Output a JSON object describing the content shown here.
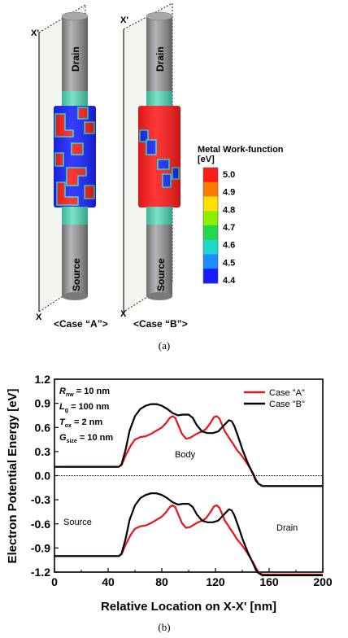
{
  "panel_a": {
    "case_a": {
      "axis_top": "X'",
      "axis_bottom": "X",
      "drain_label": "Drain",
      "source_label": "Source",
      "caption": "<Case “A”>"
    },
    "case_b": {
      "axis_top": "X'",
      "axis_bottom": "X",
      "drain_label": "Drain",
      "source_label": "Source",
      "caption": "<Case “B”>"
    },
    "colorbar": {
      "title": "Metal Work-function",
      "unit": "[eV]",
      "ticks": [
        "5.0",
        "4.9",
        "4.8",
        "4.7",
        "4.6",
        "4.5",
        "4.4"
      ],
      "colors": [
        "#ff1a1a",
        "#ff7a00",
        "#ffe000",
        "#8bf000",
        "#22d84a",
        "#1ed8d0",
        "#1e8cff",
        "#1a1aff"
      ]
    },
    "label": "(a)"
  },
  "panel_b": {
    "label": "(b)",
    "params": {
      "p1": {
        "sym": "R",
        "sub": "nw",
        "val": " = 10 nm"
      },
      "p2": {
        "sym": "L",
        "sub": "g",
        "val": " = 100 nm"
      },
      "p3": {
        "sym": "T",
        "sub": "ox",
        "val": " = 2 nm"
      },
      "p4": {
        "sym": "G",
        "sub": "size",
        "val": " = 10 nm"
      }
    },
    "region_labels": {
      "body": "Body",
      "source": "Source",
      "drain": "Drain"
    }
  },
  "chart_data": {
    "type": "line",
    "xlabel": "Relative Location on X-X' [nm]",
    "ylabel": "Electron Potential Energy [eV]",
    "xlim": [
      0,
      200
    ],
    "ylim": [
      -1.2,
      1.2
    ],
    "xticks": [
      "0",
      "40",
      "80",
      "120",
      "160",
      "200"
    ],
    "yticks": [
      "1.2",
      "0.9",
      "0.6",
      "0.3",
      "0.0",
      "-0.3",
      "-0.6",
      "-0.9",
      "-1.2"
    ],
    "legend_placement": "top-right",
    "series": [
      {
        "name": "Case \"A\"",
        "color": "#e8141c",
        "band": "conduction",
        "x": [
          0,
          48,
          50,
          53,
          57,
          60,
          64,
          68,
          72,
          76,
          80,
          83,
          86,
          88,
          90,
          92,
          95,
          98,
          101,
          104,
          107,
          110,
          113,
          116,
          119,
          121,
          123,
          125,
          127,
          129,
          131,
          133,
          136,
          140,
          144,
          148,
          150,
          152,
          155,
          200
        ],
        "y": [
          0.11,
          0.11,
          0.13,
          0.25,
          0.38,
          0.45,
          0.48,
          0.49,
          0.52,
          0.56,
          0.6,
          0.65,
          0.72,
          0.74,
          0.72,
          0.64,
          0.52,
          0.46,
          0.47,
          0.5,
          0.53,
          0.55,
          0.58,
          0.65,
          0.73,
          0.74,
          0.71,
          0.63,
          0.55,
          0.5,
          0.45,
          0.4,
          0.32,
          0.24,
          0.14,
          0.03,
          -0.04,
          -0.1,
          -0.13,
          -0.13
        ]
      },
      {
        "name": "Case \"A\"",
        "color": "#e8141c",
        "band": "valence",
        "x": [
          0,
          48,
          50,
          53,
          57,
          60,
          64,
          68,
          72,
          76,
          80,
          83,
          86,
          88,
          90,
          92,
          95,
          98,
          101,
          104,
          107,
          110,
          113,
          116,
          119,
          121,
          123,
          125,
          127,
          129,
          131,
          133,
          136,
          140,
          144,
          148,
          150,
          152,
          155,
          200
        ],
        "y": [
          -1.0,
          -1.0,
          -0.98,
          -0.86,
          -0.73,
          -0.66,
          -0.63,
          -0.62,
          -0.59,
          -0.55,
          -0.51,
          -0.46,
          -0.39,
          -0.37,
          -0.39,
          -0.47,
          -0.59,
          -0.65,
          -0.64,
          -0.61,
          -0.58,
          -0.56,
          -0.53,
          -0.46,
          -0.38,
          -0.37,
          -0.4,
          -0.48,
          -0.56,
          -0.61,
          -0.66,
          -0.71,
          -0.79,
          -0.87,
          -0.97,
          -1.08,
          -1.14,
          -1.2,
          -1.23,
          -1.23
        ]
      },
      {
        "name": "Case \"B\"",
        "color": "#000000",
        "band": "conduction",
        "x": [
          0,
          48,
          50,
          53,
          56,
          60,
          64,
          68,
          72,
          76,
          80,
          84,
          88,
          92,
          96,
          100,
          103,
          106,
          110,
          114,
          118,
          122,
          126,
          130,
          132,
          134,
          137,
          140,
          144,
          148,
          150,
          152,
          155,
          200
        ],
        "y": [
          0.11,
          0.11,
          0.14,
          0.32,
          0.56,
          0.74,
          0.83,
          0.87,
          0.89,
          0.89,
          0.87,
          0.83,
          0.78,
          0.75,
          0.76,
          0.76,
          0.72,
          0.63,
          0.55,
          0.53,
          0.53,
          0.55,
          0.62,
          0.69,
          0.68,
          0.62,
          0.48,
          0.33,
          0.16,
          0.02,
          -0.06,
          -0.1,
          -0.13,
          -0.13
        ]
      },
      {
        "name": "Case \"B\"",
        "color": "#000000",
        "band": "valence",
        "x": [
          0,
          48,
          50,
          53,
          56,
          60,
          64,
          68,
          72,
          76,
          80,
          84,
          88,
          92,
          96,
          100,
          103,
          106,
          110,
          114,
          118,
          122,
          126,
          130,
          132,
          134,
          137,
          140,
          144,
          148,
          150,
          152,
          155,
          200
        ],
        "y": [
          -1.0,
          -1.0,
          -0.97,
          -0.79,
          -0.55,
          -0.37,
          -0.28,
          -0.24,
          -0.22,
          -0.22,
          -0.24,
          -0.28,
          -0.33,
          -0.36,
          -0.35,
          -0.35,
          -0.39,
          -0.48,
          -0.56,
          -0.58,
          -0.58,
          -0.56,
          -0.49,
          -0.42,
          -0.43,
          -0.49,
          -0.63,
          -0.78,
          -0.95,
          -1.09,
          -1.17,
          -1.21,
          -1.24,
          -1.24
        ]
      }
    ]
  }
}
